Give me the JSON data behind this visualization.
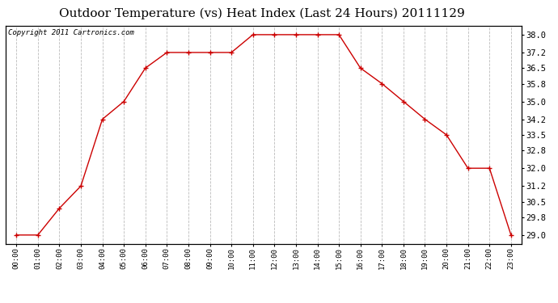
{
  "title": "Outdoor Temperature (vs) Heat Index (Last 24 Hours) 20111129",
  "copyright": "Copyright 2011 Cartronics.com",
  "x_labels": [
    "00:00",
    "01:00",
    "02:00",
    "03:00",
    "04:00",
    "05:00",
    "06:00",
    "07:00",
    "08:00",
    "09:00",
    "10:00",
    "11:00",
    "12:00",
    "13:00",
    "14:00",
    "15:00",
    "16:00",
    "17:00",
    "18:00",
    "19:00",
    "20:00",
    "21:00",
    "22:00",
    "23:00"
  ],
  "y_values": [
    29.0,
    29.0,
    30.2,
    31.2,
    34.2,
    35.0,
    36.5,
    37.2,
    37.2,
    37.2,
    37.2,
    38.0,
    38.0,
    38.0,
    38.0,
    38.0,
    36.5,
    35.8,
    35.0,
    34.2,
    33.5,
    32.0,
    32.0,
    29.0
  ],
  "y_right_ticks": [
    29.0,
    29.8,
    30.5,
    31.2,
    32.0,
    32.8,
    33.5,
    34.2,
    35.0,
    35.8,
    36.5,
    37.2,
    38.0
  ],
  "ylim": [
    28.6,
    38.4
  ],
  "line_color": "#cc0000",
  "marker": "+",
  "marker_size": 5,
  "background_color": "#ffffff",
  "grid_color": "#bbbbbb",
  "title_fontsize": 11,
  "copyright_fontsize": 6.5
}
